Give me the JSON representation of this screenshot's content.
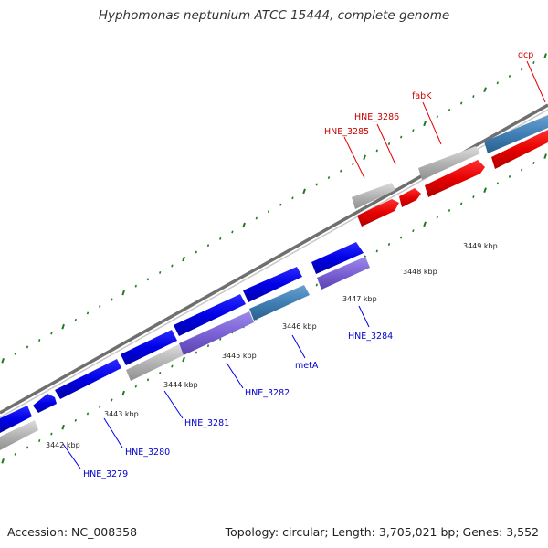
{
  "title": "Hyphomonas neptunium ATCC 15444, complete genome",
  "footer": {
    "accession": "Accession: NC_008358",
    "topology": "Topology: circular; Length: 3,705,021 bp; Genes: 3,552"
  },
  "colors": {
    "background": "#ffffff",
    "backbone": "#8a8a8a",
    "tick": "#1f7a1f",
    "forward_cds": "#e60000",
    "reverse_cds": "#0000e6",
    "forward_label": "#cc0000",
    "reverse_label": "#0000cc",
    "pseudo": "#b4b4b4",
    "blue_steel": "#3f7fb5",
    "purple": "#7b62d6",
    "scale_text": "#222222"
  },
  "scale_labels": [
    "3442 kbp",
    "3443 kbp",
    "3444 kbp",
    "3445 kbp",
    "3446 kbp",
    "3447 kbp",
    "3448 kbp",
    "3449 kbp"
  ],
  "gene_labels": {
    "forward": [
      "HNE_3285",
      "HNE_3286",
      "fabK",
      "dcp"
    ],
    "reverse": [
      "HNE_3279",
      "HNE_3280",
      "HNE_3281",
      "HNE_3282",
      "metA",
      "HNE_3284"
    ]
  }
}
